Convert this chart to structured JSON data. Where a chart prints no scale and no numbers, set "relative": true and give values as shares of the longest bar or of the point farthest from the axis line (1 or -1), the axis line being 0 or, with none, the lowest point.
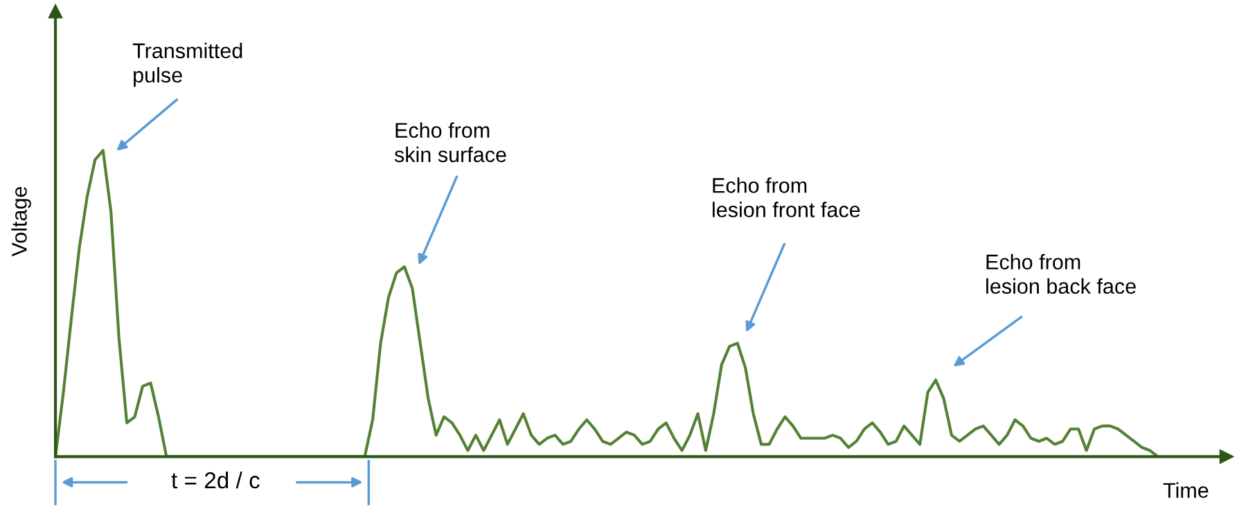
{
  "chart_data": {
    "type": "line",
    "relative": true,
    "xlabel": "Time",
    "ylabel": "Voltage",
    "categories": [
      null,
      null,
      null,
      null,
      null,
      null,
      null,
      null,
      null,
      null,
      null,
      null,
      null,
      null,
      null,
      null,
      null,
      null,
      null,
      null,
      null,
      null,
      null,
      null,
      null,
      null,
      null,
      null,
      null,
      null,
      null,
      null,
      null,
      null,
      null,
      null,
      null,
      null,
      null,
      null,
      null,
      null,
      null,
      null,
      null,
      null,
      null,
      null,
      null,
      null,
      null,
      null,
      null,
      null,
      null,
      null,
      null,
      null,
      null,
      null,
      null,
      null,
      null,
      null,
      null,
      null,
      null,
      null,
      null,
      null,
      null,
      null,
      null,
      null,
      null,
      null,
      null,
      null,
      null,
      null,
      null,
      null,
      null,
      null,
      null,
      null,
      null,
      null,
      null,
      null,
      null,
      null,
      null,
      null,
      null,
      null,
      null,
      null,
      null,
      null,
      null,
      null,
      null,
      null,
      null,
      null,
      null,
      null,
      null,
      null,
      null,
      null,
      null,
      null,
      null,
      null,
      null,
      null,
      null,
      null,
      null,
      null,
      null,
      null,
      null,
      null,
      null,
      null,
      null,
      null,
      null,
      null,
      null,
      null,
      null,
      null,
      null,
      null,
      null,
      null
    ],
    "series": [
      {
        "color": "#548235",
        "values": [
          0,
          0.21,
          0.45,
          0.68,
          0.85,
          0.97,
          1,
          0.8,
          0.39,
          0.11,
          0.13,
          0.23,
          0.24,
          0.13,
          0,
          0,
          0,
          0,
          0,
          0,
          0,
          0,
          0,
          0,
          0,
          0,
          0,
          0,
          0,
          0,
          0,
          0,
          0,
          0,
          0,
          0,
          0,
          0,
          0,
          0,
          0.12,
          0.37,
          0.52,
          0.6,
          0.62,
          0.55,
          0.37,
          0.19,
          0.07,
          0.13,
          0.11,
          0.07,
          0.02,
          0.07,
          0.02,
          0.07,
          0.12,
          0.04,
          0.09,
          0.14,
          0.07,
          0.04,
          0.06,
          0.07,
          0.04,
          0.05,
          0.09,
          0.12,
          0.09,
          0.05,
          0.04,
          0.06,
          0.08,
          0.07,
          0.04,
          0.05,
          0.09,
          0.11,
          0.06,
          0.02,
          0.07,
          0.14,
          0.02,
          0.14,
          0.3,
          0.36,
          0.37,
          0.29,
          0.14,
          0.04,
          0.04,
          0.09,
          0.13,
          0.1,
          0.06,
          0.06,
          0.06,
          0.06,
          0.07,
          0.06,
          0.03,
          0.05,
          0.09,
          0.11,
          0.08,
          0.04,
          0.05,
          0.1,
          0.07,
          0.04,
          0.21,
          0.25,
          0.19,
          0.07,
          0.05,
          0.07,
          0.09,
          0.1,
          0.07,
          0.04,
          0.07,
          0.12,
          0.1,
          0.06,
          0.05,
          0.06,
          0.04,
          0.05,
          0.09,
          0.09,
          0.02,
          0.09,
          0.1,
          0.1,
          0.09,
          0.07,
          0.05,
          0.03,
          0.02,
          0
        ]
      }
    ],
    "annotations": [
      "Transmitted\npulse",
      "Echo from\nskin surface",
      "Echo from\nlesion front face",
      "Echo from\nlesion back face",
      "t = 2d / c"
    ]
  }
}
